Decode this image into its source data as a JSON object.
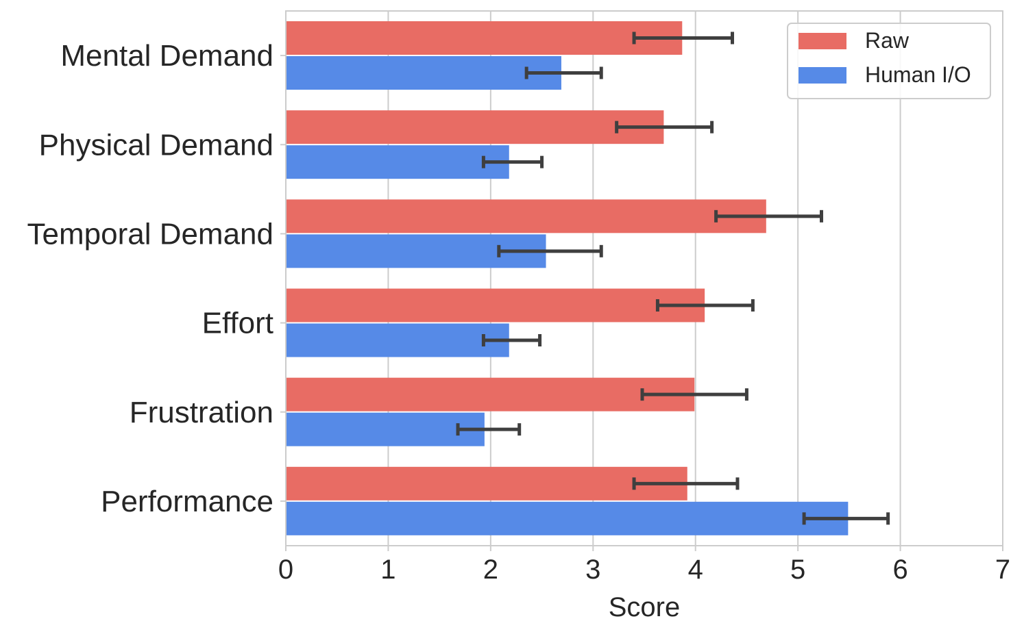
{
  "chart_data": {
    "type": "bar",
    "orientation": "horizontal",
    "categories": [
      "Mental Demand",
      "Physical Demand",
      "Temporal Demand",
      "Effort",
      "Frustration",
      "Performance"
    ],
    "series": [
      {
        "name": "Raw",
        "color": "#e86c64",
        "values": [
          3.87,
          3.69,
          4.69,
          4.09,
          3.99,
          3.92
        ],
        "error_low": [
          3.4,
          3.23,
          4.2,
          3.63,
          3.48,
          3.4
        ],
        "error_high": [
          4.36,
          4.16,
          5.23,
          4.56,
          4.5,
          4.41
        ]
      },
      {
        "name": "Human I/O",
        "color": "#568ae7",
        "values": [
          2.69,
          2.18,
          2.54,
          2.18,
          1.94,
          5.49
        ],
        "error_low": [
          2.35,
          1.93,
          2.08,
          1.93,
          1.68,
          5.06
        ],
        "error_high": [
          3.08,
          2.5,
          3.08,
          2.48,
          2.28,
          5.88
        ]
      }
    ],
    "xlabel": "Score",
    "ylabel": "",
    "xlim": [
      0,
      7
    ],
    "xticks": [
      0,
      1,
      2,
      3,
      4,
      5,
      6,
      7
    ],
    "grid": "x",
    "legend": "top-right",
    "errorbar_color": "#3f3f3f",
    "grid_color": "#cccccc",
    "axis_color": "#cccccc"
  }
}
